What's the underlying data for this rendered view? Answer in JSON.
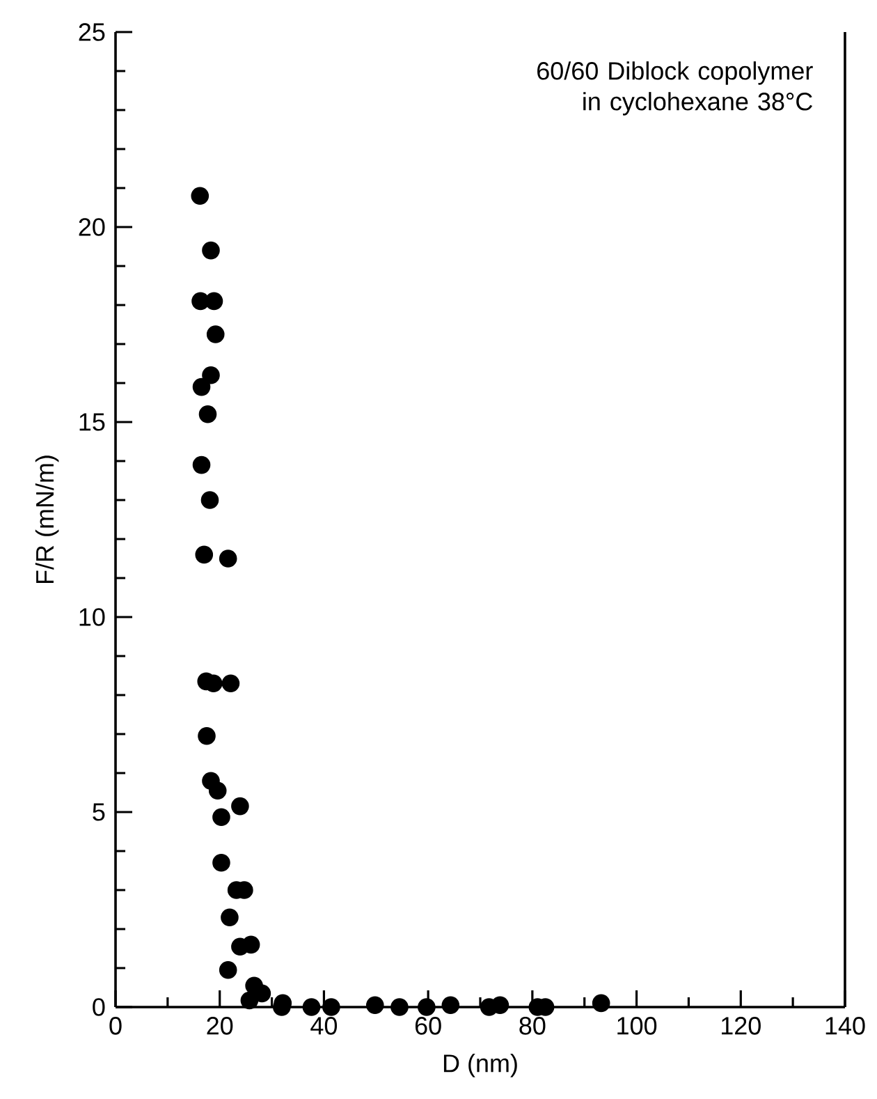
{
  "chart_data": {
    "type": "scatter",
    "xlabel": "D (nm)",
    "ylabel": "F/R (mN/m)",
    "annotations": [
      "60/60 Diblock copolymer in cyclohexane 38°C"
    ],
    "xlim": [
      0,
      140
    ],
    "xticks": [
      0,
      20,
      40,
      60,
      80,
      100,
      120,
      140
    ],
    "ylim": [
      0,
      25
    ],
    "yticks": [
      0,
      5,
      10,
      15,
      20,
      25
    ],
    "marker": "circle",
    "series": [
      {
        "color": "#000000",
        "x": [
          16.2,
          18.3,
          16.3,
          18.9,
          19.2,
          18.3,
          16.5,
          17.7,
          16.5,
          18.1,
          17.0,
          21.6,
          17.4,
          18.8,
          22.1,
          17.5,
          18.3,
          19.6,
          23.9,
          20.3,
          20.3,
          23.2,
          24.7,
          21.9,
          23.9,
          26.0,
          21.6,
          26.6,
          28.1,
          25.7,
          32.1,
          31.9,
          37.6,
          41.4,
          49.8,
          54.5,
          59.7,
          64.3,
          71.7,
          73.8,
          81.0,
          82.5,
          93.2
        ],
        "values": [
          20.8,
          19.4,
          18.1,
          18.1,
          17.25,
          16.2,
          15.9,
          15.2,
          13.9,
          13.0,
          11.6,
          11.5,
          8.35,
          8.3,
          8.3,
          6.95,
          5.8,
          5.55,
          5.15,
          4.87,
          3.7,
          3.0,
          3.0,
          2.3,
          1.55,
          1.6,
          0.95,
          0.55,
          0.35,
          0.17,
          0.1,
          0.0,
          0.0,
          0.0,
          0.05,
          0.0,
          0.0,
          0.05,
          0.0,
          0.05,
          0.0,
          0.0,
          0.1
        ]
      }
    ]
  }
}
